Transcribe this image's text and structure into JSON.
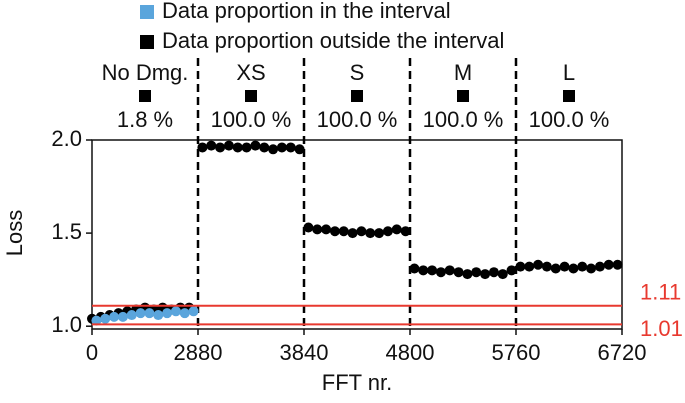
{
  "chart_data": {
    "type": "scatter",
    "x_label": "FFT nr.",
    "y_label": "Loss",
    "xlim": [
      0,
      6720
    ],
    "xticks": [
      0,
      2880,
      3840,
      4800,
      5760,
      6720
    ],
    "ylim": [
      0.985,
      2.0
    ],
    "yticks": [
      {
        "value": 1.0,
        "label": "1.0"
      },
      {
        "value": 1.5,
        "label": "1.5"
      },
      {
        "value": 2.0,
        "label": "2.0"
      }
    ],
    "hlines": [
      1.11,
      1.01
    ],
    "hline_color": "#e8392f",
    "intervals": [
      {
        "name": "No Dmg.",
        "start": 0,
        "end": 2880,
        "proportion": 1.8,
        "proportion_label": "1.8 %"
      },
      {
        "name": "XS",
        "start": 2880,
        "end": 3840,
        "proportion": 100.0,
        "proportion_label": "100.0 %"
      },
      {
        "name": "S",
        "start": 3840,
        "end": 4800,
        "proportion": 100.0,
        "proportion_label": "100.0 %"
      },
      {
        "name": "M",
        "start": 4800,
        "end": 5760,
        "proportion": 100.0,
        "proportion_label": "100.0 %"
      },
      {
        "name": "L",
        "start": 5760,
        "end": 6720,
        "proportion": 100.0,
        "proportion_label": "100.0 %"
      }
    ],
    "series": [
      {
        "name": "Data proportion outside the interval",
        "color": "#000000",
        "x": [
          0,
          240,
          480,
          720,
          960,
          1200,
          1440,
          1680,
          1920,
          2160,
          2400,
          2640,
          2920,
          3000,
          3080,
          3160,
          3240,
          3320,
          3400,
          3480,
          3560,
          3640,
          3720,
          3800,
          3880,
          3960,
          4040,
          4120,
          4200,
          4280,
          4360,
          4440,
          4520,
          4600,
          4680,
          4760,
          4840,
          4920,
          5000,
          5080,
          5160,
          5240,
          5320,
          5400,
          5480,
          5560,
          5640,
          5720,
          5800,
          5880,
          5960,
          6040,
          6120,
          6200,
          6280,
          6360,
          6440,
          6520,
          6600,
          6680
        ],
        "values": [
          1.04,
          1.05,
          1.06,
          1.07,
          1.08,
          1.09,
          1.1,
          1.09,
          1.1,
          1.09,
          1.1,
          1.1,
          1.96,
          1.97,
          1.96,
          1.97,
          1.96,
          1.96,
          1.97,
          1.96,
          1.95,
          1.96,
          1.96,
          1.95,
          1.53,
          1.52,
          1.52,
          1.51,
          1.51,
          1.5,
          1.51,
          1.5,
          1.5,
          1.51,
          1.52,
          1.51,
          1.31,
          1.3,
          1.3,
          1.29,
          1.3,
          1.29,
          1.28,
          1.29,
          1.28,
          1.29,
          1.28,
          1.3,
          1.32,
          1.32,
          1.33,
          1.32,
          1.31,
          1.32,
          1.31,
          1.32,
          1.31,
          1.32,
          1.33,
          1.33
        ]
      },
      {
        "name": "Data proportion in the interval",
        "color": "#5aa5dc",
        "x": [
          120,
          360,
          600,
          840,
          1080,
          1320,
          1560,
          1800,
          2040,
          2280,
          2520,
          2760
        ],
        "values": [
          1.03,
          1.04,
          1.05,
          1.05,
          1.06,
          1.07,
          1.07,
          1.06,
          1.07,
          1.08,
          1.07,
          1.08
        ]
      }
    ]
  }
}
